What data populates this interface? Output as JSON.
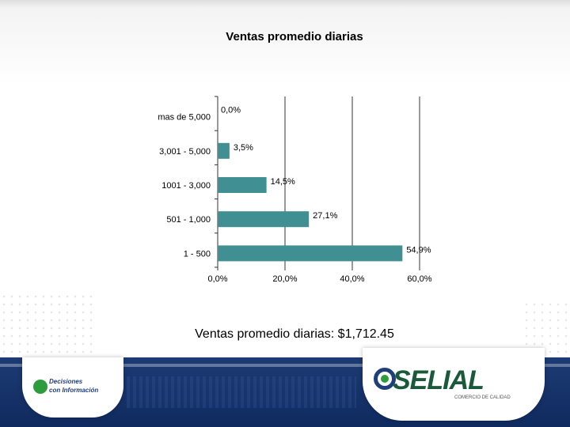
{
  "chart_data": {
    "type": "bar",
    "orientation": "horizontal",
    "title": "Ventas promedio diarias",
    "categories": [
      "mas de 5,000",
      "3,001 - 5,000",
      "1001 - 3,000",
      "501 - 1,000",
      "1 - 500"
    ],
    "values": [
      0.0,
      3.5,
      14.5,
      27.1,
      54.9
    ],
    "value_labels": [
      "0,0%",
      "3,5%",
      "14,5%",
      "27,1%",
      "54,9%"
    ],
    "xlim": [
      0,
      60
    ],
    "xticks": [
      0,
      20,
      40,
      60
    ],
    "xtick_labels": [
      "0,0%",
      "20,0%",
      "40,0%",
      "60,0%"
    ],
    "grid": "vertical",
    "bar_color": "#3f8f93",
    "caption": "Ventas promedio diarias: $1,712.45"
  },
  "footer": {
    "left_logo_line1": "Decisiones",
    "left_logo_line2": "con Información",
    "right_logo_brand": "SELIAL",
    "right_logo_tagline": "COMERCIO DE CALIDAD"
  },
  "colors": {
    "bar": "#3f8f93",
    "footer": "#1d3b74",
    "brand_green": "#2e9b3c",
    "brand_blue": "#1f3f7a"
  }
}
